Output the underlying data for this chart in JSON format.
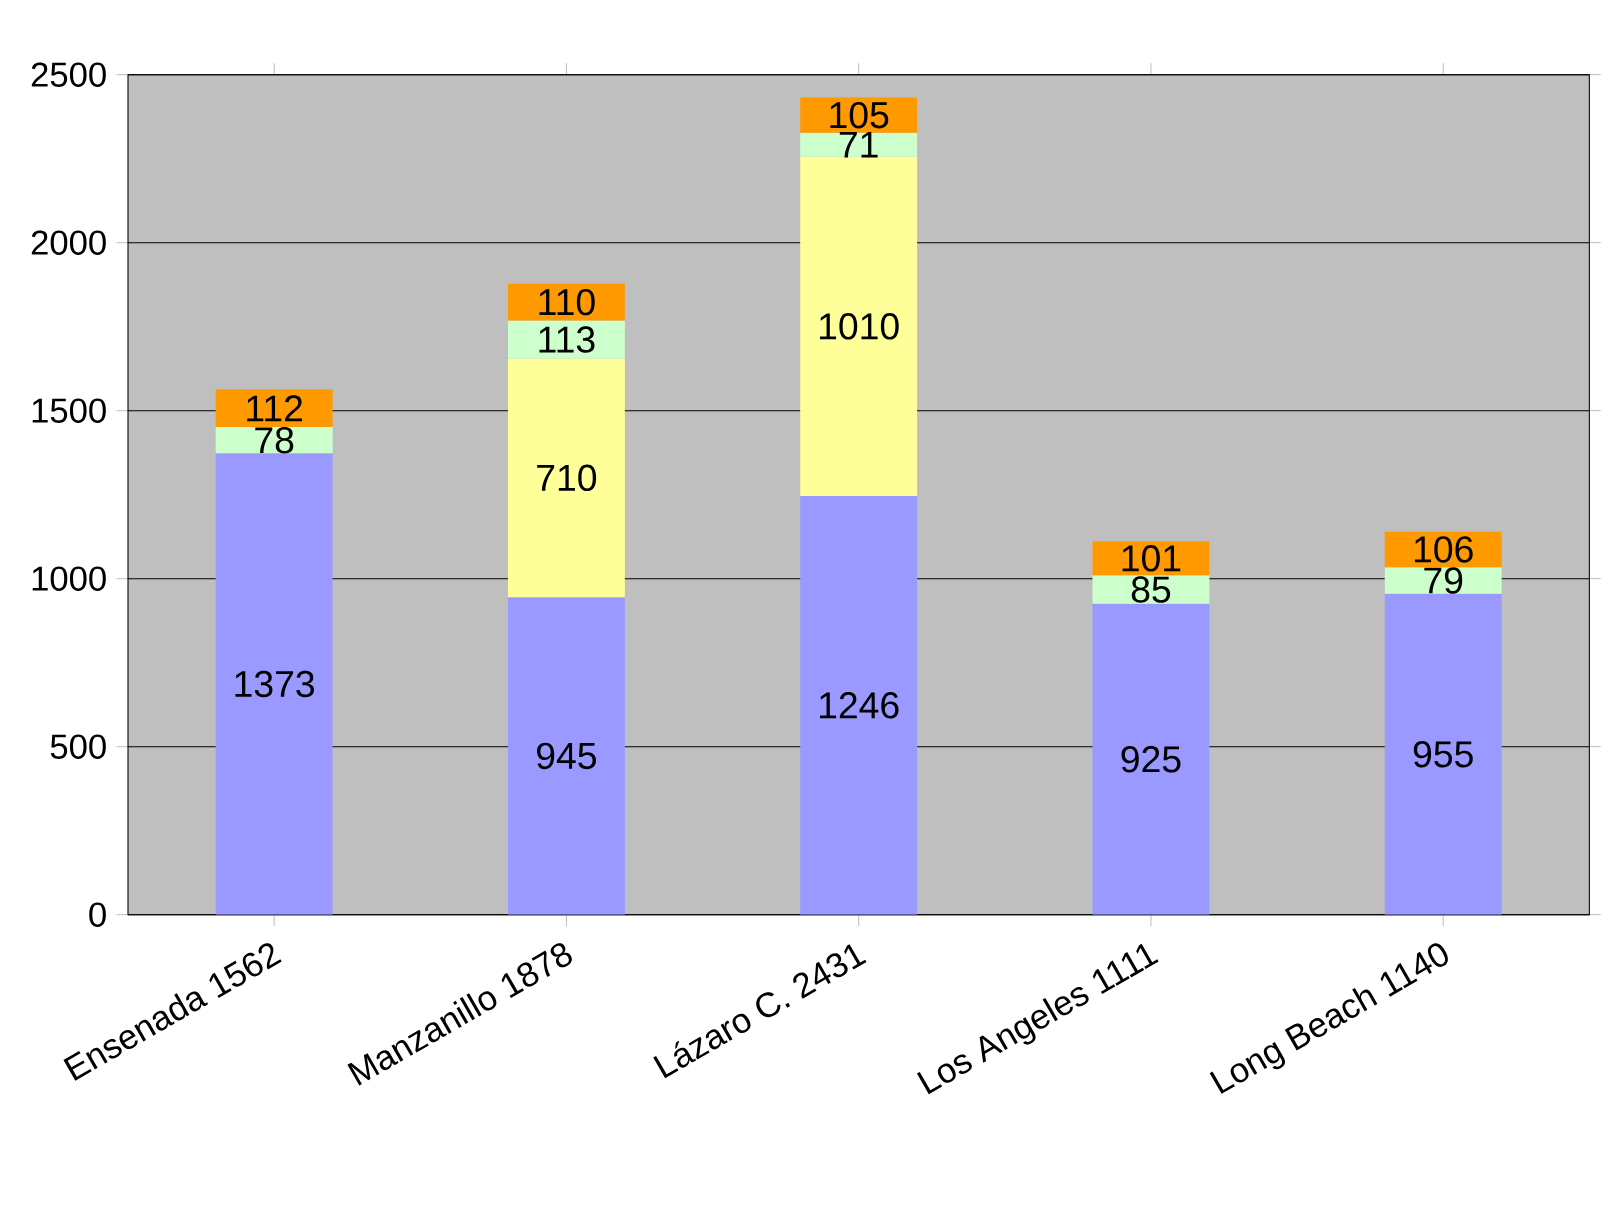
{
  "chart_data": {
    "type": "bar",
    "stacked": true,
    "categories": [
      "Ensenada 1562",
      "Manzanillo 1878",
      "Lázaro C. 2431",
      "Los Angeles 1111",
      "Long Beach 1140"
    ],
    "series": [
      {
        "color": "#9999ff",
        "values": [
          1373,
          945,
          1246,
          925,
          955
        ]
      },
      {
        "color": "#ffff99",
        "values": [
          null,
          710,
          1010,
          null,
          null
        ]
      },
      {
        "color": "#ccffcc",
        "values": [
          78,
          113,
          71,
          85,
          79
        ]
      },
      {
        "color": "#ff9900",
        "values": [
          112,
          110,
          105,
          101,
          106
        ]
      }
    ],
    "ylim": [
      0,
      2500
    ],
    "yticks": [
      0,
      500,
      1000,
      1500,
      2000,
      2500
    ],
    "grid": "y",
    "data_labels": true
  }
}
